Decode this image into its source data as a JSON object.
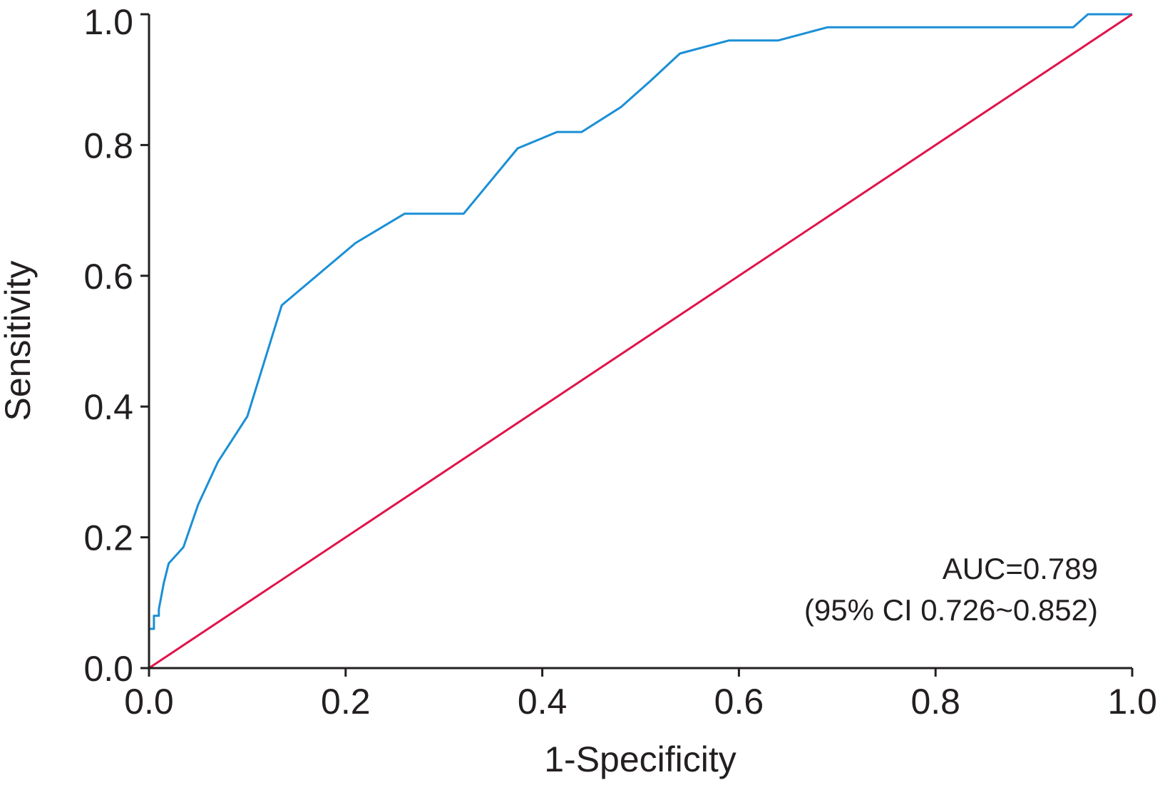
{
  "chart_data": {
    "type": "line",
    "title": "",
    "xlabel": "1-Specificity",
    "ylabel": "Sensitivity",
    "xlim": [
      0,
      1
    ],
    "ylim": [
      0,
      1
    ],
    "xticks": [
      "0.0",
      "0.2",
      "0.4",
      "0.6",
      "0.8",
      "1.0"
    ],
    "yticks": [
      "0.0",
      "0.2",
      "0.4",
      "0.6",
      "0.8",
      "1.0"
    ],
    "grid": false,
    "legend": "none",
    "annotations": {
      "auc": "AUC=0.789",
      "ci": "(95% CI 0.726~0.852)"
    },
    "series": [
      {
        "color": "#1a8fd6",
        "x": [
          0.0,
          0.0,
          0.005,
          0.005,
          0.01,
          0.01,
          0.015,
          0.02,
          0.035,
          0.05,
          0.07,
          0.1,
          0.135,
          0.21,
          0.26,
          0.32,
          0.375,
          0.415,
          0.44,
          0.48,
          0.51,
          0.54,
          0.59,
          0.64,
          0.69,
          0.94,
          0.955,
          1.0
        ],
        "y": [
          0.0,
          0.06,
          0.06,
          0.08,
          0.08,
          0.09,
          0.13,
          0.16,
          0.185,
          0.25,
          0.315,
          0.385,
          0.555,
          0.65,
          0.695,
          0.695,
          0.795,
          0.82,
          0.82,
          0.858,
          0.898,
          0.94,
          0.96,
          0.96,
          0.98,
          0.98,
          1.0,
          1.0
        ]
      },
      {
        "color": "#e0134a",
        "x": [
          0,
          1
        ],
        "y": [
          0,
          1
        ]
      }
    ]
  }
}
